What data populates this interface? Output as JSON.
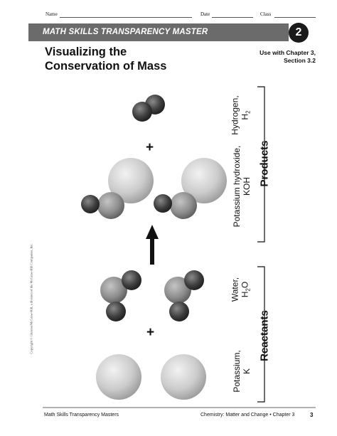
{
  "header": {
    "name_label": "Name",
    "date_label": "Date",
    "class_label": "Class"
  },
  "banner": {
    "title": "MATH SKILLS TRANSPARENCY MASTER",
    "number": "2"
  },
  "title": {
    "line1": "Visualizing the",
    "line2": "Conservation of Mass"
  },
  "use_with": {
    "line1": "Use with Chapter 3,",
    "line2": "Section 3.2"
  },
  "products": {
    "group_label": "Products",
    "hydrogen": {
      "name": "Hydrogen,",
      "formula": "H",
      "sub": "2"
    },
    "koh": {
      "name": "Potassium hydroxide,",
      "formula": "KOH"
    },
    "plus": "+"
  },
  "reactants": {
    "group_label": "Reactants",
    "water": {
      "name": "Water,",
      "formula_pre": "H",
      "sub": "2",
      "formula_post": "O"
    },
    "potassium": {
      "name": "Potassium,",
      "formula": "K"
    },
    "plus": "+"
  },
  "copyright": "Copyright © Glencoe/McGraw-Hill, a division of the McGraw-Hill Companies, Inc.",
  "footer": {
    "left": "Math Skills Transparency Masters",
    "right": "Chemistry: Matter and Change • Chapter 3",
    "page": "3"
  },
  "colors": {
    "banner": "#6b6b6b",
    "badge": "#1a1a1a",
    "potassium_atom": "#c8c8c8",
    "oxygen_atom": "#8c8c8c",
    "hydrogen_atom": "#3c3c3c"
  }
}
